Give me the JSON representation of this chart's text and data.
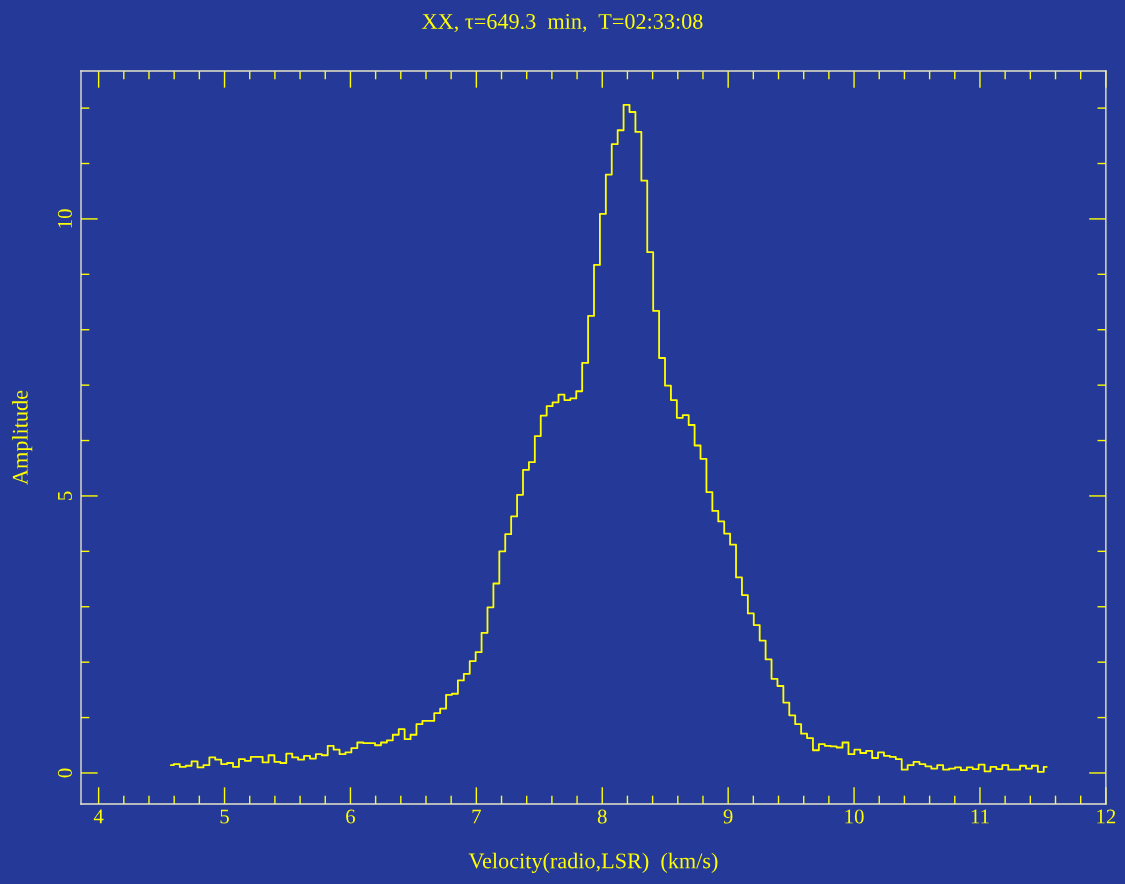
{
  "chart_data": {
    "type": "step",
    "title": "XX, τ=649.3  min,  T=02:33:08",
    "xlabel": "Velocity(radio,LSR)  (km/s)",
    "ylabel": "Amplitude",
    "color": "#ffff00",
    "x": [
      4.574,
      4.621,
      4.668,
      4.715,
      4.762,
      4.809,
      4.856,
      4.903,
      4.95,
      4.997,
      5.044,
      5.091,
      5.138,
      5.185,
      5.232,
      5.279,
      5.326,
      5.373,
      5.42,
      5.467,
      5.514,
      5.561,
      5.608,
      5.655,
      5.702,
      5.749,
      5.796,
      5.843,
      5.89,
      5.937,
      5.984,
      6.031,
      6.078,
      6.125,
      6.172,
      6.219,
      6.266,
      6.313,
      6.36,
      6.407,
      6.454,
      6.501,
      6.548,
      6.595,
      6.642,
      6.689,
      6.736,
      6.783,
      6.83,
      6.877,
      6.924,
      6.971,
      7.018,
      7.065,
      7.112,
      7.159,
      7.206,
      7.253,
      7.3,
      7.347,
      7.394,
      7.441,
      7.488,
      7.535,
      7.582,
      7.629,
      7.676,
      7.723,
      7.77,
      7.817,
      7.864,
      7.911,
      7.958,
      8.005,
      8.052,
      8.099,
      8.146,
      8.193,
      8.24,
      8.287,
      8.334,
      8.381,
      8.428,
      8.475,
      8.522,
      8.569,
      8.616,
      8.663,
      8.71,
      8.757,
      8.804,
      8.851,
      8.898,
      8.945,
      8.992,
      9.039,
      9.086,
      9.133,
      9.18,
      9.227,
      9.274,
      9.321,
      9.368,
      9.415,
      9.462,
      9.509,
      9.556,
      9.603,
      9.65,
      9.697,
      9.744,
      9.791,
      9.838,
      9.885,
      9.932,
      9.979,
      10.026,
      10.073,
      10.12,
      10.167,
      10.214,
      10.261,
      10.308,
      10.355,
      10.402,
      10.449,
      10.496,
      10.543,
      10.59,
      10.637,
      10.684,
      10.731,
      10.778,
      10.825,
      10.872,
      10.919,
      10.966,
      11.013,
      11.06,
      11.107,
      11.154,
      11.201,
      11.248,
      11.295,
      11.342,
      11.389,
      11.436,
      11.483,
      11.53
    ],
    "values": [
      0.14,
      0.16,
      0.11,
      0.13,
      0.21,
      0.1,
      0.14,
      0.28,
      0.24,
      0.16,
      0.18,
      0.11,
      0.25,
      0.22,
      0.29,
      0.29,
      0.19,
      0.32,
      0.2,
      0.18,
      0.35,
      0.28,
      0.24,
      0.31,
      0.26,
      0.34,
      0.32,
      0.49,
      0.42,
      0.34,
      0.37,
      0.45,
      0.55,
      0.54,
      0.54,
      0.5,
      0.55,
      0.59,
      0.69,
      0.79,
      0.61,
      0.69,
      0.88,
      0.94,
      0.94,
      1.08,
      1.16,
      1.41,
      1.43,
      1.67,
      1.79,
      2.02,
      2.18,
      2.53,
      2.99,
      3.42,
      4.0,
      4.31,
      4.63,
      5.02,
      5.47,
      5.61,
      6.08,
      6.45,
      6.62,
      6.69,
      6.83,
      6.73,
      6.76,
      6.89,
      7.4,
      8.25,
      9.17,
      10.09,
      10.8,
      11.35,
      11.6,
      12.06,
      11.93,
      11.57,
      10.69,
      9.4,
      8.34,
      7.49,
      6.99,
      6.73,
      6.41,
      6.46,
      6.28,
      5.91,
      5.67,
      5.07,
      4.73,
      4.54,
      4.32,
      4.12,
      3.53,
      3.21,
      2.88,
      2.67,
      2.39,
      2.05,
      1.7,
      1.57,
      1.27,
      1.04,
      0.88,
      0.71,
      0.63,
      0.41,
      0.52,
      0.49,
      0.48,
      0.46,
      0.55,
      0.34,
      0.42,
      0.36,
      0.4,
      0.27,
      0.37,
      0.31,
      0.29,
      0.25,
      0.06,
      0.14,
      0.2,
      0.16,
      0.12,
      0.08,
      0.14,
      0.06,
      0.08,
      0.1,
      0.05,
      0.1,
      0.07,
      0.15,
      0.03,
      0.11,
      0.07,
      0.14,
      0.06,
      0.06,
      0.13,
      0.08,
      0.13,
      0.02,
      0.11
    ],
    "xlim": [
      3.86,
      12
    ],
    "ylim": [
      -0.56,
      12.67
    ],
    "xticks": [
      4,
      {
        "value": 4.2,
        "label": null
      },
      {
        "value": 4.4,
        "label": null
      },
      {
        "value": 4.6,
        "label": null
      },
      {
        "value": 4.8,
        "label": null
      },
      5,
      {
        "value": 5.2,
        "label": null
      },
      {
        "value": 5.4,
        "label": null
      },
      {
        "value": 5.6,
        "label": null
      },
      {
        "value": 5.8,
        "label": null
      },
      6,
      {
        "value": 6.2,
        "label": null
      },
      {
        "value": 6.4,
        "label": null
      },
      {
        "value": 6.6,
        "label": null
      },
      {
        "value": 6.8,
        "label": null
      },
      7,
      {
        "value": 7.2,
        "label": null
      },
      {
        "value": 7.4,
        "label": null
      },
      {
        "value": 7.6,
        "label": null
      },
      {
        "value": 7.8,
        "label": null
      },
      8,
      {
        "value": 8.2,
        "label": null
      },
      {
        "value": 8.4,
        "label": null
      },
      {
        "value": 8.6,
        "label": null
      },
      {
        "value": 8.8,
        "label": null
      },
      9,
      {
        "value": 9.2,
        "label": null
      },
      {
        "value": 9.4,
        "label": null
      },
      {
        "value": 9.6,
        "label": null
      },
      {
        "value": 9.8,
        "label": null
      },
      10,
      {
        "value": 10.2,
        "label": null
      },
      {
        "value": 10.4,
        "label": null
      },
      {
        "value": 10.6,
        "label": null
      },
      {
        "value": 10.8,
        "label": null
      },
      11,
      {
        "value": 11.2,
        "label": null
      },
      {
        "value": 11.4,
        "label": null
      },
      {
        "value": 11.6,
        "label": null
      },
      {
        "value": 11.8,
        "label": null
      },
      12
    ],
    "yticks": [
      0,
      {
        "value": 1,
        "label": null
      },
      {
        "value": 2,
        "label": null
      },
      {
        "value": 3,
        "label": null
      },
      {
        "value": 4,
        "label": null
      },
      5,
      {
        "value": 6,
        "label": null
      },
      {
        "value": 7,
        "label": null
      },
      {
        "value": 8,
        "label": null
      },
      {
        "value": 9,
        "label": null
      },
      10,
      {
        "value": 11,
        "label": null
      },
      {
        "value": 12,
        "label": null
      }
    ],
    "grid": false
  }
}
